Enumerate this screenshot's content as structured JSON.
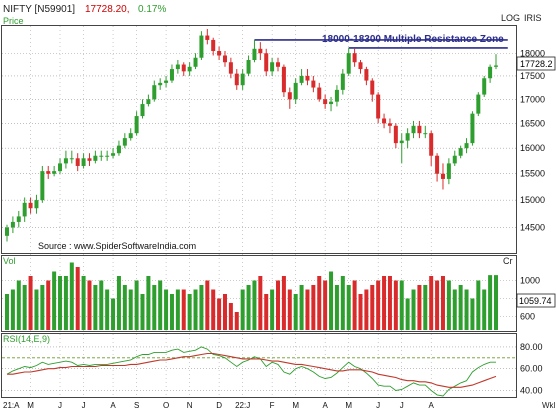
{
  "header": {
    "symbol": "NIFTY [N59901]",
    "last_price": "17728.20,",
    "change_pct": "0.17%",
    "scale_mode": "LOG",
    "tool": "IRIS",
    "price_label": "Price",
    "last_price_tag": "17728.2"
  },
  "annotation": {
    "text": "18000-18300 Multiple Resistance Zone"
  },
  "source_text": "Source : www.SpiderSoftwareIndia.com",
  "volume_panel": {
    "label": "Vol",
    "unit": "Cr",
    "last_value_tag": "1059.74"
  },
  "rsi_panel": {
    "label": "RSI(14,E,9)"
  },
  "x_axis": {
    "labels": [
      "21:A",
      "M",
      "J",
      "J",
      "A",
      "S",
      "O",
      "N",
      "D",
      "22:J",
      "F",
      "M",
      "A",
      "M",
      "J",
      "J",
      "A"
    ],
    "unit": "Wkl"
  },
  "colors": {
    "up": "#2e9e2e",
    "down": "#d92b2b",
    "resistance": "#2b2d8a",
    "rsi_line": "#2e9e2e",
    "rsi_signal": "#c0392b",
    "grid": "#9a9a9a",
    "header_red": "#cc0000",
    "header_green": "#2e9e2e"
  },
  "chart_data": [
    {
      "type": "candlestick",
      "title": "NIFTY [N59901]",
      "scale": "log",
      "ylim": [
        14100,
        18550
      ],
      "y_ticks": [
        14500,
        15000,
        15500,
        16000,
        16500,
        17000,
        17500,
        18000
      ],
      "resistance_zone": [
        18000,
        18300
      ],
      "resistance_lines": [
        {
          "value": 18300,
          "from_week": 42,
          "to_week": 85
        },
        {
          "value": 18120,
          "from_week": 58,
          "to_week": 85
        }
      ],
      "weeks": 84,
      "open": [
        14350,
        14500,
        14600,
        14700,
        14950,
        14850,
        15000,
        15550,
        15500,
        15550,
        15700,
        15800,
        15800,
        15650,
        15800,
        15750,
        15850,
        15850,
        15850,
        15900,
        16050,
        16200,
        16300,
        16650,
        16900,
        17000,
        17300,
        17350,
        17400,
        17650,
        17750,
        17600,
        17700,
        17900,
        18400,
        18300,
        18050,
        17950,
        17800,
        17550,
        17300,
        17550,
        17850,
        18100,
        18000,
        17600,
        17800,
        17700,
        17150,
        17000,
        17350,
        17500,
        17400,
        17250,
        17000,
        16900,
        16950,
        17200,
        17550,
        18000,
        17800,
        17650,
        17400,
        17100,
        16600,
        16500,
        16450,
        16100,
        16150,
        16300,
        16450,
        16300,
        16300,
        15850,
        15500,
        15400,
        15700,
        15850,
        16000,
        16100,
        16700,
        17100,
        17450,
        17700
      ],
      "close": [
        14500,
        14600,
        14700,
        14950,
        14850,
        15000,
        15550,
        15500,
        15550,
        15700,
        15800,
        15800,
        15650,
        15800,
        15750,
        15850,
        15850,
        15850,
        15900,
        16050,
        16200,
        16300,
        16650,
        16900,
        17000,
        17300,
        17350,
        17400,
        17650,
        17750,
        17600,
        17700,
        17900,
        18400,
        18300,
        18050,
        17950,
        17800,
        17550,
        17300,
        17550,
        17850,
        18100,
        18000,
        17600,
        17800,
        17700,
        17150,
        17000,
        17350,
        17500,
        17400,
        17250,
        17000,
        16900,
        16950,
        17200,
        17550,
        18000,
        17800,
        17650,
        17400,
        17100,
        16600,
        16500,
        16450,
        16100,
        16150,
        16300,
        16450,
        16300,
        16300,
        15850,
        15500,
        15400,
        15700,
        15850,
        16000,
        16100,
        16700,
        17100,
        17450,
        17700,
        17728.2
      ],
      "high": [
        14550,
        14700,
        14800,
        15050,
        15050,
        15100,
        15650,
        15650,
        15650,
        15800,
        15950,
        15950,
        15900,
        15900,
        15900,
        15950,
        15950,
        15950,
        16000,
        16150,
        16300,
        16400,
        16750,
        17000,
        17100,
        17400,
        17450,
        17500,
        17750,
        17850,
        17800,
        17800,
        18000,
        18500,
        18550,
        18350,
        18150,
        18050,
        17900,
        17650,
        17650,
        17950,
        18300,
        18250,
        18100,
        17900,
        17900,
        17750,
        17250,
        17450,
        17650,
        17650,
        17500,
        17350,
        17100,
        17050,
        17300,
        17650,
        18120,
        18100,
        17850,
        17700,
        17450,
        17150,
        16700,
        16600,
        16500,
        16300,
        16400,
        16550,
        16550,
        16450,
        16350,
        15900,
        15700,
        15800,
        15950,
        16050,
        16200,
        16750,
        17150,
        17500,
        17750,
        17980
      ],
      "low": [
        14250,
        14400,
        14500,
        14600,
        14750,
        14750,
        14950,
        15400,
        15450,
        15500,
        15600,
        15700,
        15550,
        15600,
        15650,
        15700,
        15750,
        15750,
        15800,
        15850,
        16000,
        16150,
        16250,
        16600,
        16850,
        16950,
        17200,
        17250,
        17350,
        17550,
        17500,
        17500,
        17650,
        17850,
        18200,
        17950,
        17850,
        17700,
        17450,
        17200,
        17200,
        17500,
        17800,
        17850,
        17500,
        17500,
        17600,
        17050,
        16800,
        16900,
        17300,
        17300,
        17150,
        16950,
        16800,
        16750,
        16850,
        17100,
        17500,
        17700,
        17550,
        17300,
        16950,
        16500,
        16400,
        16300,
        16000,
        15700,
        16000,
        16200,
        16200,
        16200,
        15650,
        15350,
        15200,
        15300,
        15650,
        15800,
        15900,
        16050,
        16650,
        17050,
        17350,
        17650
      ]
    },
    {
      "type": "bar",
      "title": "Vol",
      "unit": "Cr",
      "ylim": [
        450,
        1250
      ],
      "y_ticks": [
        600,
        800,
        1000
      ],
      "values": [
        850,
        900,
        1000,
        950,
        1050,
        900,
        950,
        1000,
        1100,
        1050,
        1050,
        1200,
        1150,
        1050,
        1000,
        950,
        1000,
        900,
        800,
        1050,
        950,
        900,
        1000,
        850,
        1050,
        950,
        1000,
        900,
        850,
        900,
        900,
        850,
        900,
        950,
        1000,
        900,
        800,
        850,
        750,
        650,
        900,
        950,
        1000,
        1050,
        850,
        900,
        1000,
        1050,
        900,
        850,
        950,
        900,
        950,
        1050,
        1000,
        1100,
        950,
        1050,
        950,
        1000,
        850,
        900,
        950,
        1000,
        1050,
        1050,
        1000,
        1000,
        800,
        900,
        950,
        950,
        1050,
        1000,
        1050,
        1000,
        900,
        950,
        900,
        800,
        1000,
        900,
        1059.74,
        1059.74
      ],
      "colors_follow_candles": true
    },
    {
      "type": "line",
      "title": "RSI(14,E,9)",
      "ylim": [
        35,
        90
      ],
      "y_ticks": [
        40,
        60,
        80
      ],
      "reference_level": 70,
      "series": [
        {
          "name": "",
          "values": [
            55,
            58,
            60,
            62,
            61,
            63,
            66,
            64,
            65,
            66,
            67,
            66,
            63,
            64,
            63,
            64,
            64,
            64,
            65,
            66,
            67,
            68,
            71,
            73,
            73,
            75,
            75,
            75,
            77,
            78,
            75,
            76,
            77,
            80,
            78,
            73,
            72,
            70,
            66,
            62,
            66,
            68,
            71,
            69,
            62,
            66,
            64,
            57,
            55,
            60,
            62,
            60,
            57,
            53,
            51,
            52,
            56,
            61,
            66,
            62,
            60,
            56,
            51,
            45,
            44,
            44,
            40,
            41,
            44,
            47,
            45,
            45,
            40,
            36,
            35,
            41,
            44,
            47,
            49,
            57,
            61,
            64,
            66,
            66
          ]
        },
        {
          "name": "",
          "values": [
            55,
            55,
            56,
            57,
            57,
            58,
            59,
            60,
            60,
            61,
            61,
            62,
            62,
            62,
            62,
            62,
            63,
            63,
            63,
            63,
            63,
            64,
            64,
            65,
            66,
            67,
            68,
            68,
            69,
            70,
            71,
            71,
            72,
            73,
            74,
            74,
            73,
            72,
            71,
            70,
            69,
            69,
            69,
            69,
            68,
            67,
            67,
            66,
            65,
            64,
            64,
            63,
            62,
            61,
            60,
            59,
            58,
            58,
            59,
            59,
            59,
            58,
            57,
            55,
            54,
            53,
            52,
            50,
            49,
            49,
            48,
            48,
            47,
            45,
            44,
            43,
            43,
            43,
            44,
            45,
            47,
            49,
            51,
            53
          ]
        }
      ]
    }
  ]
}
